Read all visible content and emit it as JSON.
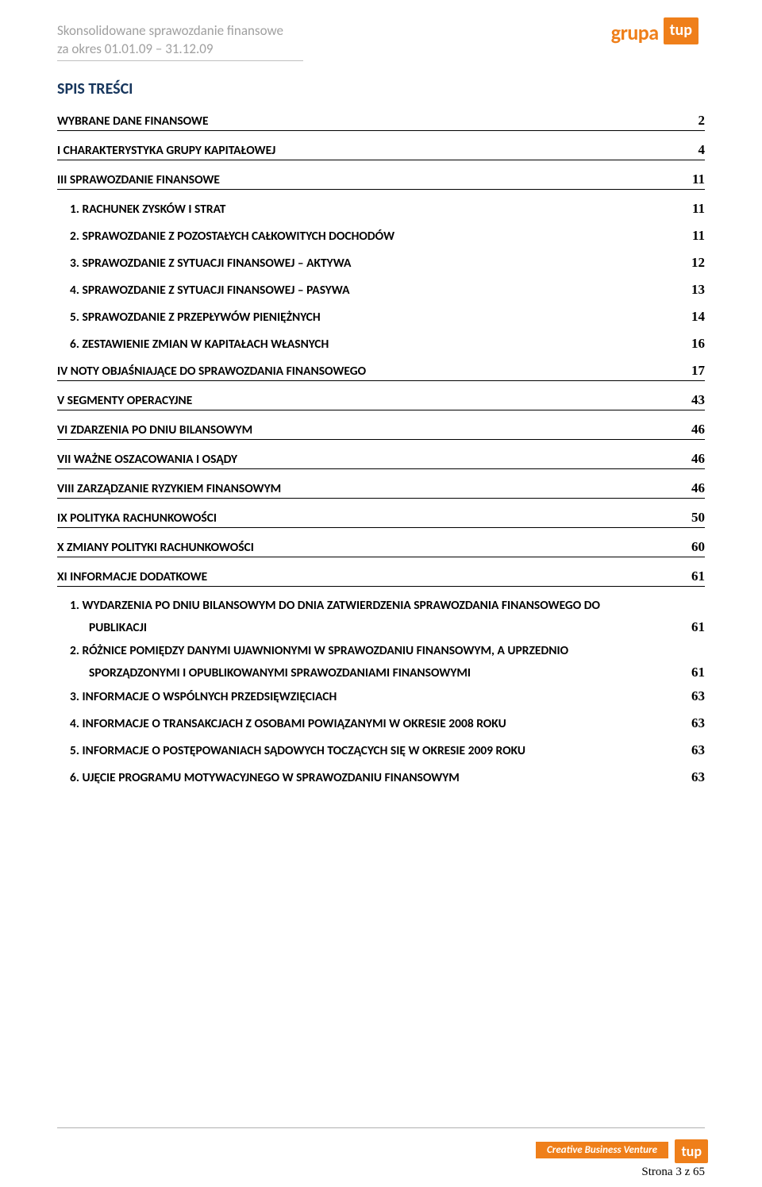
{
  "header": {
    "line1": "Skonsolidowane sprawozdanie finansowe",
    "line2": "za okres 01.01.09 – 31.12.09",
    "logo_text1": "grupa",
    "logo_text2": "tup"
  },
  "title": "SPIS TREŚCI",
  "toc": {
    "s1": {
      "label": "WYBRANE DANE FINANSOWE",
      "page": "2"
    },
    "s2": {
      "label": "I  CHARAKTERYSTYKA GRUPY KAPITAŁOWEJ",
      "page": "4"
    },
    "s3": {
      "label": "III SPRAWOZDANIE FINANSOWE",
      "page": "11"
    },
    "s3a": {
      "label": "1.   RACHUNEK ZYSKÓW I STRAT",
      "page": "11"
    },
    "s3b": {
      "label": "2.   SPRAWOZDANIE Z POZOSTAŁYCH CAŁKOWITYCH DOCHODÓW",
      "page": "11"
    },
    "s3c": {
      "label": "3.   SPRAWOZDANIE Z SYTUACJI FINANSOWEJ – AKTYWA",
      "page": "12"
    },
    "s3d": {
      "label": "4.   SPRAWOZDANIE Z SYTUACJI FINANSOWEJ – PASYWA",
      "page": "13"
    },
    "s3e": {
      "label": "5.   SPRAWOZDANIE Z PRZEPŁYWÓW PIENIĘŻNYCH",
      "page": "14"
    },
    "s3f": {
      "label": "6.   ZESTAWIENIE ZMIAN W KAPITAŁACH WŁASNYCH",
      "page": "16"
    },
    "s4": {
      "label": "IV NOTY OBJAŚNIAJĄCE DO SPRAWOZDANIA FINANSOWEGO",
      "page": "17"
    },
    "s5": {
      "label": "V SEGMENTY OPERACYJNE",
      "page": "43"
    },
    "s6": {
      "label": "VI ZDARZENIA PO DNIU BILANSOWYM",
      "page": "46"
    },
    "s7": {
      "label": "VII WAŻNE OSZACOWANIA I OSĄDY",
      "page": "46"
    },
    "s8": {
      "label": "VIII ZARZĄDZANIE RYZYKIEM FINANSOWYM",
      "page": "46"
    },
    "s9": {
      "label": "IX POLITYKA RACHUNKOWOŚCI",
      "page": "50"
    },
    "s10": {
      "label": "X ZMIANY POLITYKI RACHUNKOWOŚCI",
      "page": "60"
    },
    "s11": {
      "label": "XI INFORMACJE DODATKOWE",
      "page": "61"
    },
    "s11a_l1": "1.   WYDARZENIA PO DNIU BILANSOWYM DO DNIA ZATWIERDZENIA SPRAWOZDANIA FINANSOWEGO DO",
    "s11a_l2": "PUBLIKACJI",
    "s11a_p": "61",
    "s11b_l1": "2.   RÓŻNICE POMIĘDZY DANYMI UJAWNIONYMI W SPRAWOZDANIU FINANSOWYM, A UPRZEDNIO",
    "s11b_l2": "SPORZĄDZONYMI I OPUBLIKOWANYMI SPRAWOZDANIAMI FINANSOWYMI",
    "s11b_p": "61",
    "s11c": {
      "label": "3.   INFORMACJE O WSPÓLNYCH PRZEDSIĘWZIĘCIACH",
      "page": "63"
    },
    "s11d": {
      "label": "4.   INFORMACJE O TRANSAKCJACH Z OSOBAMI POWIĄZANYMI W OKRESIE 2008 ROKU",
      "page": "63"
    },
    "s11e": {
      "label": "5.   INFORMACJE O POSTĘPOWANIACH SĄDOWYCH TOCZĄCYCH SIĘ W OKRESIE 2009 ROKU",
      "page": "63"
    },
    "s11f": {
      "label": "6.   UJĘCIE PROGRAMU MOTYWACYJNEGO W SPRAWOZDANIU FINANSOWYM",
      "page": "63"
    }
  },
  "footer": {
    "slogan": "Creative Business Venture",
    "logo": "tup",
    "page_info": "Strona 3 z 65"
  },
  "colors": {
    "brand_orange": "#ef7f1a",
    "title_navy": "#17365d",
    "header_grey": "#a0a0a0"
  }
}
